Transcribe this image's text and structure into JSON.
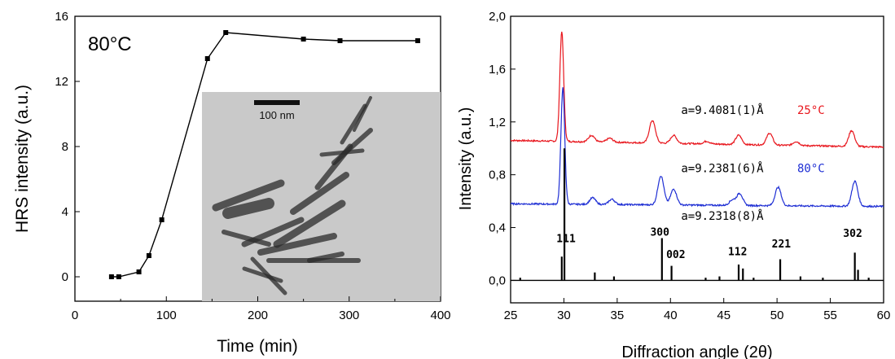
{
  "chart_data": [
    {
      "type": "scatter",
      "xlabel": "Time (min)",
      "ylabel": "HRS intensity (a.u.)",
      "xlim": [
        0,
        400
      ],
      "ylim": [
        -1.5,
        16
      ],
      "xticks": [
        "0",
        "100",
        "200",
        "300",
        "400"
      ],
      "yticks": [
        "0",
        "4",
        "8",
        "12",
        "16"
      ],
      "annotation": "80°C",
      "inset_scale_label": "100 nm",
      "series": [
        {
          "x": [
            40,
            48,
            70,
            81,
            95,
            145,
            165,
            250,
            290,
            375
          ],
          "y": [
            0.0,
            0.0,
            0.3,
            1.3,
            3.5,
            13.4,
            15.0,
            14.6,
            14.5,
            14.5
          ]
        }
      ],
      "colors": {
        "series": "#000000"
      }
    },
    {
      "type": "line",
      "xlabel": "Diffraction angle (2θ)",
      "ylabel": "Intensity (a.u.)",
      "xlim": [
        25,
        60
      ],
      "ylim": [
        -0.17,
        2.0
      ],
      "xticks": [
        "25",
        "30",
        "35",
        "40",
        "45",
        "50",
        "55",
        "60"
      ],
      "yticks": [
        "0,0",
        "0,4",
        "0,8",
        "1,2",
        "1,6",
        "2,0"
      ],
      "series": [
        {
          "label": "25°C",
          "lattice": "a=9.4081(1)Å",
          "color": "#e8161d",
          "baseline": 1.06,
          "baseline_end": 1.01,
          "peaks": [
            {
              "x": 29.8,
              "h": 0.83
            },
            {
              "x": 32.6,
              "h": 0.05
            },
            {
              "x": 34.3,
              "h": 0.03
            },
            {
              "x": 38.3,
              "h": 0.17
            },
            {
              "x": 40.3,
              "h": 0.06
            },
            {
              "x": 43.4,
              "h": 0.02
            },
            {
              "x": 46.4,
              "h": 0.07
            },
            {
              "x": 49.3,
              "h": 0.09
            },
            {
              "x": 51.8,
              "h": 0.03
            },
            {
              "x": 57.0,
              "h": 0.12
            }
          ]
        },
        {
          "label": "80°C",
          "lattice": "a=9.2381(6)Å",
          "color": "#1f2fd4",
          "baseline": 0.58,
          "baseline_end": 0.56,
          "peaks": [
            {
              "x": 29.9,
              "h": 0.88
            },
            {
              "x": 32.7,
              "h": 0.05
            },
            {
              "x": 34.5,
              "h": 0.04
            },
            {
              "x": 39.1,
              "h": 0.22
            },
            {
              "x": 40.3,
              "h": 0.12
            },
            {
              "x": 45.8,
              "h": 0.04
            },
            {
              "x": 46.5,
              "h": 0.09
            },
            {
              "x": 50.1,
              "h": 0.14
            },
            {
              "x": 57.3,
              "h": 0.19
            }
          ]
        },
        {
          "label": "",
          "lattice": "a=9.2318(8)Å",
          "color": "#000000",
          "baseline": 0.0,
          "baseline_end": 0.0,
          "sticks": [
            {
              "x": 25.9,
              "h": 0.02
            },
            {
              "x": 29.8,
              "h": 0.18
            },
            {
              "x": 30.05,
              "h": 1.0
            },
            {
              "x": 32.9,
              "h": 0.06
            },
            {
              "x": 34.7,
              "h": 0.03
            },
            {
              "x": 39.2,
              "h": 0.32
            },
            {
              "x": 40.1,
              "h": 0.11
            },
            {
              "x": 43.3,
              "h": 0.02
            },
            {
              "x": 44.6,
              "h": 0.03
            },
            {
              "x": 46.4,
              "h": 0.12
            },
            {
              "x": 46.8,
              "h": 0.09
            },
            {
              "x": 47.8,
              "h": 0.02
            },
            {
              "x": 50.3,
              "h": 0.16
            },
            {
              "x": 52.2,
              "h": 0.03
            },
            {
              "x": 54.3,
              "h": 0.02
            },
            {
              "x": 57.3,
              "h": 0.21
            },
            {
              "x": 57.6,
              "h": 0.08
            },
            {
              "x": 58.6,
              "h": 0.02
            }
          ]
        }
      ],
      "peak_labels": [
        {
          "text": "111",
          "x": 30.2,
          "y": 0.29
        },
        {
          "text": "300",
          "x": 39.0,
          "y": 0.34
        },
        {
          "text": "002",
          "x": 40.5,
          "y": 0.17
        },
        {
          "text": "112",
          "x": 46.3,
          "y": 0.19
        },
        {
          "text": "221",
          "x": 50.4,
          "y": 0.25
        },
        {
          "text": "302",
          "x": 57.1,
          "y": 0.33
        }
      ]
    }
  ]
}
